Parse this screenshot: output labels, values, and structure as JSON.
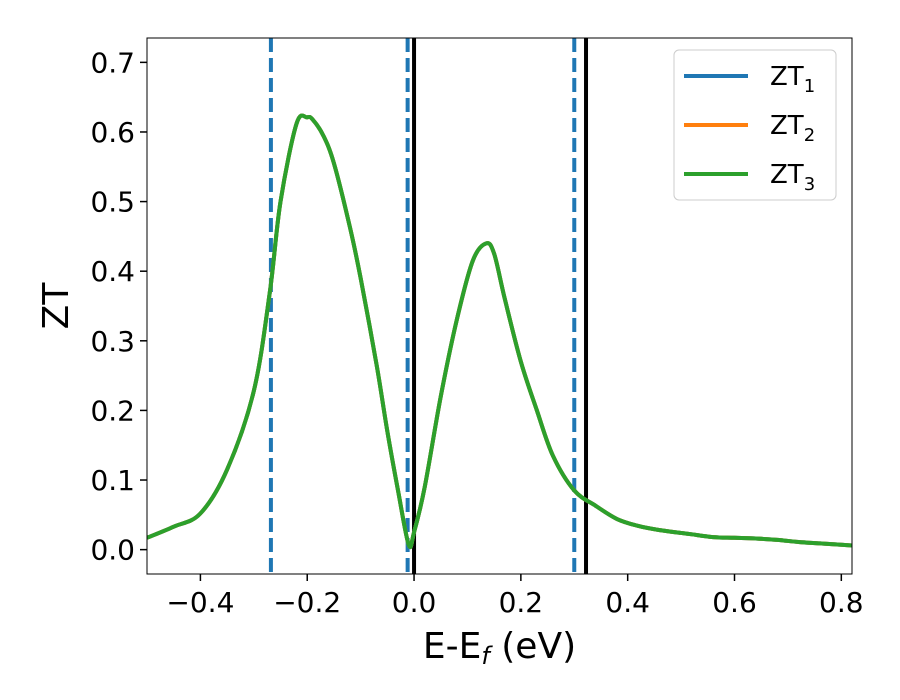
{
  "chart_data": {
    "type": "line",
    "xlabel": "E-E",
    "xlabel_sub": "f",
    "xlabel_unit": " (eV)",
    "ylabel": "ZT",
    "xlim": [
      -0.5,
      0.82
    ],
    "ylim": [
      -0.035,
      0.735
    ],
    "x_ticks": [
      -0.4,
      -0.2,
      0.0,
      0.2,
      0.4,
      0.6,
      0.8
    ],
    "x_tick_labels": [
      "−0.4",
      "−0.2",
      "0.0",
      "0.2",
      "0.4",
      "0.6",
      "0.8"
    ],
    "y_ticks": [
      0.0,
      0.1,
      0.2,
      0.3,
      0.4,
      0.5,
      0.6,
      0.7
    ],
    "y_tick_labels": [
      "0.0",
      "0.1",
      "0.2",
      "0.3",
      "0.4",
      "0.5",
      "0.6",
      "0.7"
    ],
    "grid": false,
    "legend_position": "top-right",
    "series": [
      {
        "name": "ZT",
        "sub": "1",
        "color": "#1f77b4",
        "x": [
          -0.5,
          -0.45,
          -0.4,
          -0.35,
          -0.3,
          -0.27,
          -0.25,
          -0.22,
          -0.2,
          -0.19,
          -0.17,
          -0.15,
          -0.12,
          -0.1,
          -0.07,
          -0.05,
          -0.03,
          -0.01,
          0.0,
          0.02,
          0.05,
          0.08,
          0.11,
          0.135,
          0.15,
          0.17,
          0.2,
          0.23,
          0.26,
          0.3,
          0.34,
          0.38,
          0.42,
          0.46,
          0.5,
          0.52,
          0.56,
          0.6,
          0.64,
          0.68,
          0.72,
          0.76,
          0.8,
          0.82
        ],
        "y": [
          0.017,
          0.033,
          0.052,
          0.115,
          0.228,
          0.37,
          0.5,
          0.612,
          0.621,
          0.618,
          0.595,
          0.555,
          0.463,
          0.39,
          0.265,
          0.17,
          0.085,
          0.007,
          0.025,
          0.09,
          0.22,
          0.33,
          0.415,
          0.44,
          0.425,
          0.36,
          0.27,
          0.2,
          0.135,
          0.085,
          0.063,
          0.044,
          0.034,
          0.028,
          0.024,
          0.022,
          0.018,
          0.017,
          0.016,
          0.014,
          0.011,
          0.009,
          0.007,
          0.006
        ]
      },
      {
        "name": "ZT",
        "sub": "2",
        "color": "#ff7f0e",
        "x": [
          -0.5,
          -0.45,
          -0.4,
          -0.35,
          -0.3,
          -0.27,
          -0.25,
          -0.22,
          -0.2,
          -0.19,
          -0.17,
          -0.15,
          -0.12,
          -0.1,
          -0.07,
          -0.05,
          -0.03,
          -0.01,
          0.0,
          0.02,
          0.05,
          0.08,
          0.11,
          0.135,
          0.15,
          0.17,
          0.2,
          0.23,
          0.26,
          0.3,
          0.34,
          0.38,
          0.42,
          0.46,
          0.5,
          0.52,
          0.56,
          0.6,
          0.64,
          0.68,
          0.72,
          0.76,
          0.8,
          0.82
        ],
        "y": [
          0.017,
          0.033,
          0.052,
          0.115,
          0.228,
          0.37,
          0.5,
          0.612,
          0.621,
          0.618,
          0.595,
          0.555,
          0.463,
          0.39,
          0.265,
          0.17,
          0.085,
          0.007,
          0.025,
          0.09,
          0.22,
          0.33,
          0.415,
          0.44,
          0.425,
          0.36,
          0.27,
          0.2,
          0.135,
          0.085,
          0.063,
          0.044,
          0.034,
          0.028,
          0.024,
          0.022,
          0.018,
          0.017,
          0.016,
          0.014,
          0.011,
          0.009,
          0.007,
          0.006
        ]
      },
      {
        "name": "ZT",
        "sub": "3",
        "color": "#2ca02c",
        "x": [
          -0.5,
          -0.45,
          -0.4,
          -0.35,
          -0.3,
          -0.27,
          -0.25,
          -0.22,
          -0.2,
          -0.19,
          -0.17,
          -0.15,
          -0.12,
          -0.1,
          -0.07,
          -0.05,
          -0.03,
          -0.01,
          0.0,
          0.02,
          0.05,
          0.08,
          0.11,
          0.135,
          0.15,
          0.17,
          0.2,
          0.23,
          0.26,
          0.3,
          0.34,
          0.38,
          0.42,
          0.46,
          0.5,
          0.52,
          0.56,
          0.6,
          0.64,
          0.68,
          0.72,
          0.76,
          0.8,
          0.82
        ],
        "y": [
          0.017,
          0.033,
          0.052,
          0.115,
          0.228,
          0.37,
          0.5,
          0.612,
          0.621,
          0.618,
          0.595,
          0.555,
          0.463,
          0.39,
          0.265,
          0.17,
          0.085,
          0.007,
          0.025,
          0.09,
          0.22,
          0.33,
          0.415,
          0.44,
          0.425,
          0.36,
          0.27,
          0.2,
          0.135,
          0.085,
          0.063,
          0.044,
          0.034,
          0.028,
          0.024,
          0.022,
          0.018,
          0.017,
          0.016,
          0.014,
          0.011,
          0.009,
          0.007,
          0.006
        ]
      }
    ],
    "vlines": [
      {
        "x": -0.268,
        "style": "dashed",
        "color": "#1f77b4"
      },
      {
        "x": -0.012,
        "style": "dashed",
        "color": "#1f77b4"
      },
      {
        "x": 0.3,
        "style": "dashed",
        "color": "#1f77b4"
      },
      {
        "x": 0.0,
        "style": "solid",
        "color": "#000000"
      },
      {
        "x": 0.322,
        "style": "solid",
        "color": "#000000"
      }
    ]
  }
}
